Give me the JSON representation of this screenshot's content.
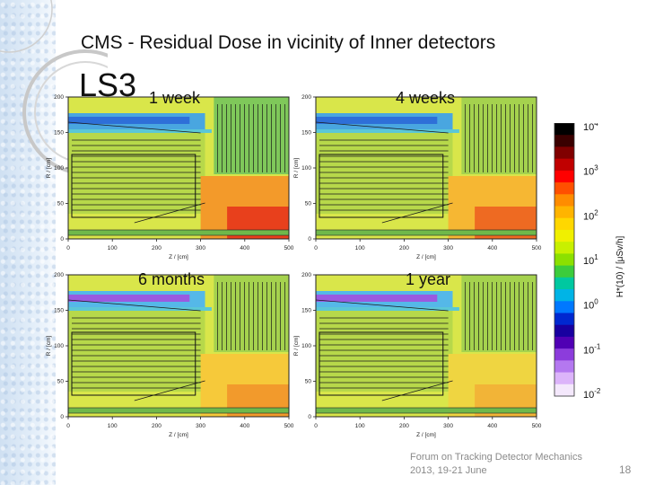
{
  "slide": {
    "title_main": "CMS",
    "title_rest": " - Residual Dose in vicinity of Inner detectors",
    "subtitle": "LS3",
    "panels": [
      {
        "label": "1 week"
      },
      {
        "label": "4 weeks"
      },
      {
        "label": "6 months"
      },
      {
        "label": "1 year"
      }
    ],
    "axes": {
      "xlabel": "Z / [cm]",
      "ylabel": "R / [cm]",
      "xticks": [
        "0",
        "100",
        "200",
        "300",
        "400",
        "500"
      ],
      "yticks": [
        "0",
        "50",
        "100",
        "150",
        "200"
      ]
    },
    "colorbar": {
      "label": "H*(10) / [μSv/h]",
      "ticks": [
        {
          "base": "10",
          "exp": "4"
        },
        {
          "base": "10",
          "exp": "3"
        },
        {
          "base": "10",
          "exp": "2"
        },
        {
          "base": "10",
          "exp": "1"
        },
        {
          "base": "10",
          "exp": "0"
        },
        {
          "base": "10",
          "exp": "-1"
        },
        {
          "base": "10",
          "exp": "-2"
        }
      ]
    },
    "footer_line1": "Forum on Tracking Detector Mechanics",
    "footer_line2": "2013, 19-21 June",
    "page_number": "18"
  }
}
